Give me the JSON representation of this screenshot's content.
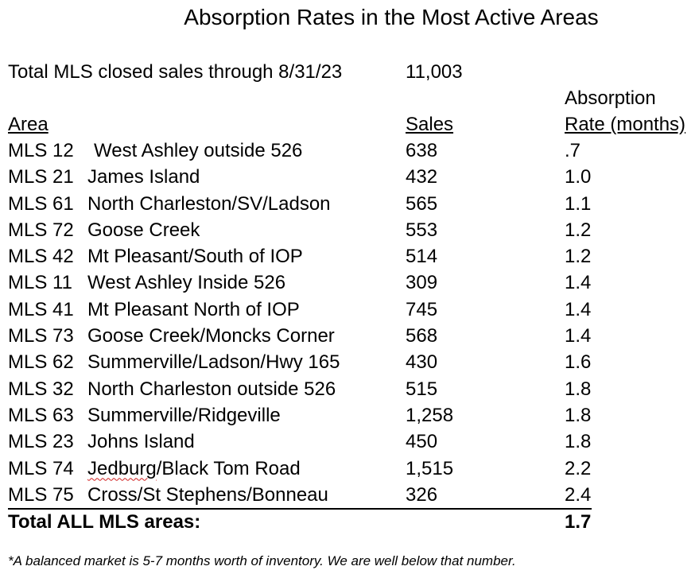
{
  "title": "Absorption Rates in the Most Active Areas",
  "total_sales": {
    "label": "Total MLS closed sales through 8/31/23",
    "value": "11,003"
  },
  "headers": {
    "area": "Area",
    "sales": "Sales",
    "rate_line1": "Absorption",
    "rate_line2": "Rate (months)"
  },
  "rows": [
    {
      "code": "MLS 12",
      "name": "West Ashley outside 526",
      "sales": "638",
      "rate": ".7"
    },
    {
      "code": "MLS 21",
      "name": "James Island",
      "sales": "432",
      "rate": "1.0"
    },
    {
      "code": "MLS 61",
      "name": "North Charleston/SV/Ladson",
      "sales": "565",
      "rate": "1.1"
    },
    {
      "code": "MLS 72",
      "name": "Goose Creek",
      "sales": "553",
      "rate": "1.2"
    },
    {
      "code": "MLS 42",
      "name": "Mt Pleasant/South of IOP",
      "sales": "514",
      "rate": "1.2"
    },
    {
      "code": "MLS 11",
      "name": "West Ashley Inside 526",
      "sales": "309",
      "rate": "1.4"
    },
    {
      "code": "MLS 41",
      "name": "Mt Pleasant North of IOP",
      "sales": "745",
      "rate": "1.4"
    },
    {
      "code": "MLS 73",
      "name": "Goose Creek/Moncks Corner",
      "sales": "568",
      "rate": "1.4"
    },
    {
      "code": "MLS 62",
      "name": "Summerville/Ladson/Hwy 165",
      "sales": "430",
      "rate": "1.6"
    },
    {
      "code": "MLS 32",
      "name": "North Charleston outside 526",
      "sales": "515",
      "rate": "1.8"
    },
    {
      "code": "MLS 63",
      "name": "Summerville/Ridgeville",
      "sales": "1,258",
      "rate": "1.8"
    },
    {
      "code": "MLS 23",
      "name": "Johns Island",
      "sales": "450",
      "rate": "1.8"
    },
    {
      "code": "MLS 74",
      "name": "Jedburg/Black Tom Road",
      "sales": "1,515",
      "rate": "2.2"
    },
    {
      "code": "MLS 75",
      "name": "Cross/St Stephens/Bonneau",
      "sales": "326",
      "rate": "2.4"
    }
  ],
  "total_row": {
    "label": "Total ALL MLS areas:",
    "rate": "1.7"
  },
  "footnote": "*A balanced market is 5-7 months worth of inventory. We are well below that number."
}
